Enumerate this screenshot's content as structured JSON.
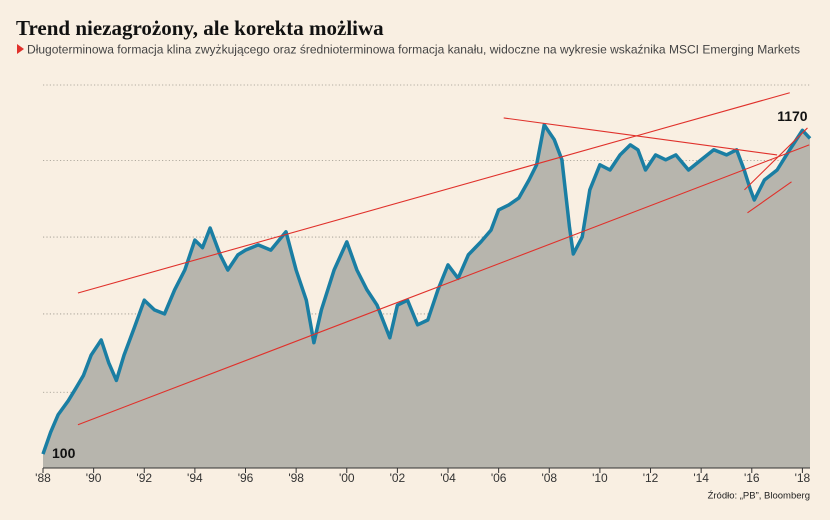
{
  "chart_data": {
    "type": "area",
    "title": "Trend niezagrożony, ale korekta możliwa",
    "subtitle": "Długoterminowa formacja klina zwyżkującego oraz średnioterminowa formacja kanału, widoczne na wykresie wskaźnika MSCI Emerging Markets",
    "source": "Źródło: „PB”, Bloomberg",
    "log_scale": true,
    "grid": true,
    "xlim": [
      1988,
      2018.3
    ],
    "ylim": [
      90,
      1650
    ],
    "yticks": [
      90,
      160,
      290,
      520,
      930,
      1650
    ],
    "xticks": [
      {
        "value": 1988,
        "label": "'88"
      },
      {
        "value": 1990,
        "label": "'90"
      },
      {
        "value": 1992,
        "label": "'92"
      },
      {
        "value": 1994,
        "label": "'94"
      },
      {
        "value": 1996,
        "label": "'96"
      },
      {
        "value": 1998,
        "label": "'98"
      },
      {
        "value": 2000,
        "label": "'00"
      },
      {
        "value": 2002,
        "label": "'02"
      },
      {
        "value": 2004,
        "label": "'04"
      },
      {
        "value": 2006,
        "label": "'06"
      },
      {
        "value": 2008,
        "label": "'08"
      },
      {
        "value": 2010,
        "label": "'10"
      },
      {
        "value": 2012,
        "label": "'12"
      },
      {
        "value": 2014,
        "label": "'14"
      },
      {
        "value": 2016,
        "label": "'16"
      },
      {
        "value": 2018,
        "label": "'18"
      }
    ],
    "x": [
      1988.0,
      1988.3,
      1988.6,
      1989.0,
      1989.3,
      1989.6,
      1989.9,
      1990.3,
      1990.6,
      1990.9,
      1991.2,
      1991.6,
      1992.0,
      1992.4,
      1992.8,
      1993.2,
      1993.6,
      1994.0,
      1994.3,
      1994.6,
      1995.0,
      1995.3,
      1995.7,
      1996.0,
      1996.5,
      1997.0,
      1997.6,
      1998.0,
      1998.4,
      1998.7,
      1999.0,
      1999.5,
      2000.0,
      2000.4,
      2000.8,
      2001.2,
      2001.7,
      2002.0,
      2002.4,
      2002.8,
      2003.2,
      2003.6,
      2004.0,
      2004.4,
      2004.8,
      2005.3,
      2005.7,
      2006.0,
      2006.4,
      2006.8,
      2007.2,
      2007.5,
      2007.8,
      2008.2,
      2008.5,
      2008.8,
      2008.95,
      2009.3,
      2009.6,
      2010.0,
      2010.4,
      2010.8,
      2011.2,
      2011.5,
      2011.8,
      2012.2,
      2012.6,
      2013.0,
      2013.5,
      2014.0,
      2014.5,
      2015.0,
      2015.4,
      2015.7,
      2015.95,
      2016.1,
      2016.5,
      2017.0,
      2017.5,
      2018.0,
      2018.3
    ],
    "series": [
      {
        "name": "MSCI Emerging Markets",
        "color": "#1a7ea3",
        "area_color": "#b7b5ad",
        "values": [
          100,
          118,
          135,
          150,
          165,
          182,
          212,
          238,
          200,
          175,
          212,
          260,
          322,
          299,
          290,
          348,
          405,
          508,
          480,
          557,
          454,
          405,
          454,
          471,
          490,
          471,
          541,
          405,
          322,
          233,
          299,
          405,
          501,
          405,
          348,
          310,
          242,
          310,
          322,
          267,
          277,
          348,
          421,
          380,
          454,
          501,
          548,
          639,
          664,
          700,
          802,
          900,
          1219,
          1089,
          935,
          560,
          457,
          520,
          744,
          900,
          865,
          970,
          1047,
          1009,
          865,
          970,
          935,
          970,
          865,
          935,
          1009,
          970,
          1009,
          865,
          744,
          689,
          802,
          865,
          1009,
          1170,
          1100
        ]
      }
    ],
    "point_labels": [
      {
        "x": 1988.0,
        "y": 100,
        "label": "100"
      },
      {
        "x": 2018.0,
        "y": 1170,
        "label": "1170"
      }
    ],
    "trend_lines": [
      {
        "color": "#e0312b",
        "x": [
          1989.38,
          2017.5
        ],
        "y": [
          340,
          1556
        ]
      },
      {
        "color": "#e0312b",
        "x": [
          1989.38,
          2018.27
        ],
        "y": [
          125,
          1047
        ]
      },
      {
        "color": "#e0312b",
        "x": [
          2006.2,
          2017.0
        ],
        "y": [
          1285,
          970
        ]
      },
      {
        "color": "#e0312b",
        "x": [
          2015.71,
          2018.2
        ],
        "y": [
          744,
          1191
        ]
      },
      {
        "color": "#e0312b",
        "x": [
          2015.83,
          2017.57
        ],
        "y": [
          625,
          791
        ]
      }
    ]
  }
}
